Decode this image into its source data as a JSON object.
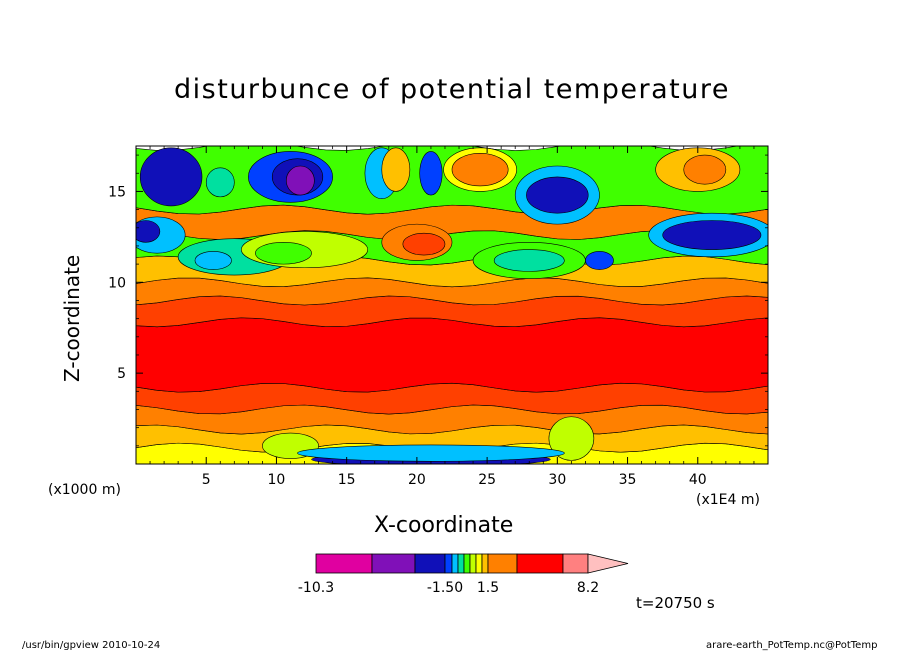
{
  "title": "disturbunce of potential temperature",
  "xlabel": "X-coordinate",
  "ylabel": "Z-coordinate",
  "x_units_left": "(x1000 m)",
  "x_units_right": "(x1E4 m)",
  "time_label": "t=20750 s",
  "footer_program": "/usr/bin/gpview   2010-10-24",
  "footer_dataset": "arare-earth_PotTemp.nc@PotTemp",
  "chart_data": {
    "type": "heatmap",
    "title": "disturbunce of potential temperature",
    "xlabel": "X-coordinate",
    "ylabel": "Z-coordinate",
    "x_ticks": [
      "5",
      "10",
      "15",
      "20",
      "25",
      "30",
      "35",
      "40"
    ],
    "x_tick_values": [
      5,
      10,
      15,
      20,
      25,
      30,
      35,
      40
    ],
    "y_ticks": [
      "5",
      "10",
      "15"
    ],
    "y_tick_values": [
      5,
      10,
      15
    ],
    "xlim": [
      0,
      45
    ],
    "ylim": [
      0,
      17.5
    ],
    "x_units": "(x1E4 m)",
    "y_units": "(x1000 m)",
    "time": "t=20750 s",
    "colorbar": {
      "labels": [
        "-10.3",
        "-1.50",
        "1.5",
        "8.2"
      ],
      "colors": [
        "#e000a0",
        "#8010b8",
        "#1010b8",
        "#0040ff",
        "#00c0ff",
        "#00e0a0",
        "#40ff00",
        "#c0ff00",
        "#ffff00",
        "#ffc000",
        "#ff8000",
        "#ff4000",
        "#ff0000",
        "#ff8080",
        "#ffc0c0"
      ],
      "extend": "max"
    },
    "layer_levels": [
      -10.3,
      -6,
      -3,
      -1.5,
      -1,
      -0.5,
      0,
      0.5,
      1,
      1.5,
      3,
      5,
      8.2
    ]
  }
}
